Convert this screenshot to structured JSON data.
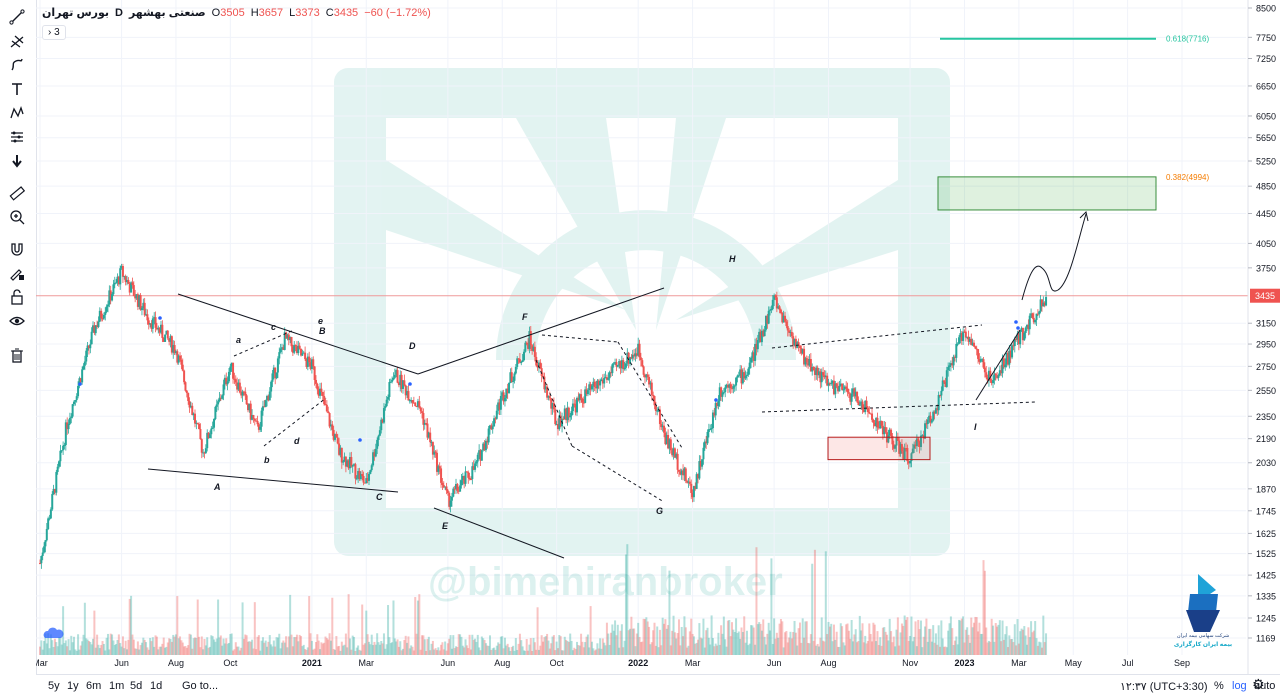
{
  "legend": {
    "symbol": "صنعتی بهشهر",
    "interval": "D",
    "exchange": "بورس تهران",
    "open_label": "O",
    "open": "3505",
    "high_label": "H",
    "high": "3657",
    "low_label": "L",
    "low": "3373",
    "close_label": "C",
    "close": "3435",
    "change": "−60 (−1.72%)",
    "collapsed_count": "3"
  },
  "watermark": "@bimehiranbroker",
  "logo": {
    "line1": "شرکت سهامی بیمه ایران",
    "line2": "بیمه ایران کارگزاری"
  },
  "bottom": {
    "ranges": [
      "5y",
      "1y",
      "6m",
      "1m",
      "5d",
      "1d"
    ],
    "goto": "Go to...",
    "time": "۱۲:۳۷ (UTC+3:30)",
    "percent": "%",
    "log": "log",
    "auto": "auto"
  },
  "colors": {
    "up": "#26a69a",
    "down": "#ef5350",
    "fib618": "#26c6a0",
    "fib382": "#f57c00",
    "price_line": "#ef9a9a",
    "watermark_logo": "#26a69a"
  },
  "toolbar_icons": [
    "trend-line-icon",
    "pitchfork-icon",
    "brush-icon",
    "text-icon",
    "pattern-icon",
    "prediction-icon",
    "arrow-down-icon",
    "ruler-icon",
    "zoom-in-icon",
    "magnet-icon",
    "lock-pencil-icon",
    "lock-icon",
    "eye-icon",
    "trash-icon"
  ],
  "chart_data": {
    "type": "candlestick",
    "scale": "log",
    "current_price": 3435,
    "y_ticks": [
      8500,
      7750,
      7250,
      6650,
      6050,
      5650,
      5250,
      4850,
      4450,
      4050,
      3750,
      3435,
      3150,
      2950,
      2750,
      2550,
      2350,
      2190,
      2030,
      1870,
      1745,
      1625,
      1525,
      1425,
      1335,
      1245,
      1169
    ],
    "x_ticks": [
      "Mar",
      "Jun",
      "Aug",
      "Oct",
      "2021",
      "Mar",
      "Jun",
      "Aug",
      "Oct",
      "2022",
      "Mar",
      "Jun",
      "Aug",
      "Nov",
      "2023",
      "Mar",
      "May",
      "Jul",
      "Sep"
    ],
    "price_path": [
      [
        "2020-03",
        1480
      ],
      [
        "2020-04",
        2300
      ],
      [
        "2020-05",
        3100
      ],
      [
        "2020-06",
        3700
      ],
      [
        "2020-07",
        3200
      ],
      [
        "2020-08",
        2900
      ],
      [
        "2020-09",
        2100
      ],
      [
        "2020-10",
        2750
      ],
      [
        "2020-11",
        2250
      ],
      [
        "2020-12",
        3000
      ],
      [
        "2021-01",
        2750
      ],
      [
        "2021-02",
        2100
      ],
      [
        "2021-03",
        1900
      ],
      [
        "2021-04",
        2700
      ],
      [
        "2021-05",
        2400
      ],
      [
        "2021-06",
        1800
      ],
      [
        "2021-07",
        2000
      ],
      [
        "2021-08",
        2500
      ],
      [
        "2021-09",
        3000
      ],
      [
        "2021-10",
        2300
      ],
      [
        "2021-11",
        2500
      ],
      [
        "2022-01",
        2900
      ],
      [
        "2022-02",
        2200
      ],
      [
        "2022-03",
        1850
      ],
      [
        "2022-04",
        2550
      ],
      [
        "2022-05",
        2700
      ],
      [
        "2022-06",
        3400
      ],
      [
        "2022-07",
        2850
      ],
      [
        "2022-08",
        2600
      ],
      [
        "2022-09",
        2500
      ],
      [
        "2022-10",
        2250
      ],
      [
        "2022-11",
        2050
      ],
      [
        "2022-12",
        2450
      ],
      [
        "2023-01",
        3100
      ],
      [
        "2023-02",
        2600
      ],
      [
        "2023-03",
        3000
      ],
      [
        "2023-04",
        3435
      ]
    ],
    "annotations": {
      "wave_labels": [
        "A",
        "B",
        "C",
        "D",
        "E",
        "F",
        "G",
        "H",
        "I",
        "a",
        "b",
        "c",
        "d",
        "e"
      ],
      "fib_levels": [
        {
          "label": "0.618(7716)",
          "value": 7716
        },
        {
          "label": "0.382(4994)",
          "value": 4994
        }
      ],
      "target_zone": [
        4500,
        4994
      ],
      "support_zone": [
        2050,
        2200
      ],
      "projected_path": [
        [
          "2023-04",
          3435
        ],
        [
          "2023-04",
          3750
        ],
        [
          "2023-05",
          3500
        ],
        [
          "2023-06",
          4450
        ]
      ]
    }
  }
}
